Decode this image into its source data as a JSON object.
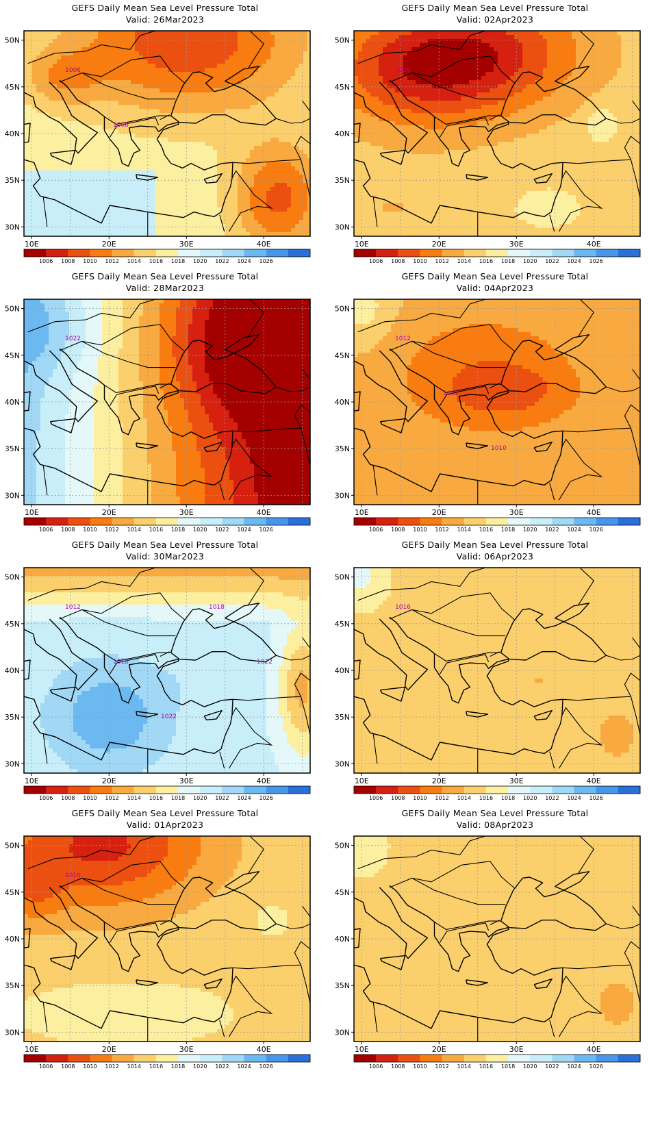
{
  "figure": {
    "panels": [
      {
        "title": "GEFS Daily Mean Sea Level Pressure Total",
        "valid": "Valid: 26Mar2023",
        "pattern": "lowNE",
        "labels": [
          "1006",
          "1008"
        ]
      },
      {
        "title": "GEFS Daily Mean Sea Level Pressure Total",
        "valid": "Valid: 02Apr2023",
        "pattern": "lowN",
        "labels": [
          "1016"
        ]
      },
      {
        "title": "GEFS Daily Mean Sea Level Pressure Total",
        "valid": "Valid: 28Mar2023",
        "pattern": "lowE_highW",
        "labels": [
          "1022"
        ]
      },
      {
        "title": "GEFS Daily Mean Sea Level Pressure Total",
        "valid": "Valid: 04Apr2023",
        "pattern": "mildLow",
        "labels": [
          "1012",
          "1012",
          "1010"
        ]
      },
      {
        "title": "GEFS Daily Mean Sea Level Pressure Total",
        "valid": "Valid: 30Mar2023",
        "pattern": "highCenter",
        "labels": [
          "1012",
          "1018",
          "1022",
          "1018",
          "1022"
        ]
      },
      {
        "title": "GEFS Daily Mean Sea Level Pressure Total",
        "valid": "Valid: 06Apr2023",
        "pattern": "flat",
        "labels": [
          "1016"
        ]
      },
      {
        "title": "GEFS Daily Mean Sea Level Pressure Total",
        "valid": "Valid: 01Apr2023",
        "pattern": "lowNW",
        "labels": [
          "1010"
        ]
      },
      {
        "title": "GEFS Daily Mean Sea Level Pressure Total",
        "valid": "Valid: 08Apr2023",
        "pattern": "flat2",
        "labels": []
      }
    ],
    "axes": {
      "lat_ticks": [
        "30N",
        "35N",
        "40N",
        "45N",
        "50N"
      ],
      "lon_ticks": [
        "10E",
        "20E",
        "30E",
        "40E"
      ],
      "extent": {
        "lon": [
          9,
          46
        ],
        "lat": [
          29,
          51
        ]
      }
    },
    "colorbar": {
      "labels": [
        "1006",
        "1008",
        "1010",
        "1012",
        "1014",
        "1016",
        "1018",
        "1020",
        "1022",
        "1024",
        "1026"
      ],
      "colors": [
        "#a50000",
        "#d62010",
        "#ec5010",
        "#f97c10",
        "#f8aa40",
        "#fbd06c",
        "#fdefa0",
        "#e4f8fa",
        "#c8eefa",
        "#a0d8f6",
        "#6cb8f0",
        "#4896ea",
        "#2a70d8"
      ]
    }
  }
}
